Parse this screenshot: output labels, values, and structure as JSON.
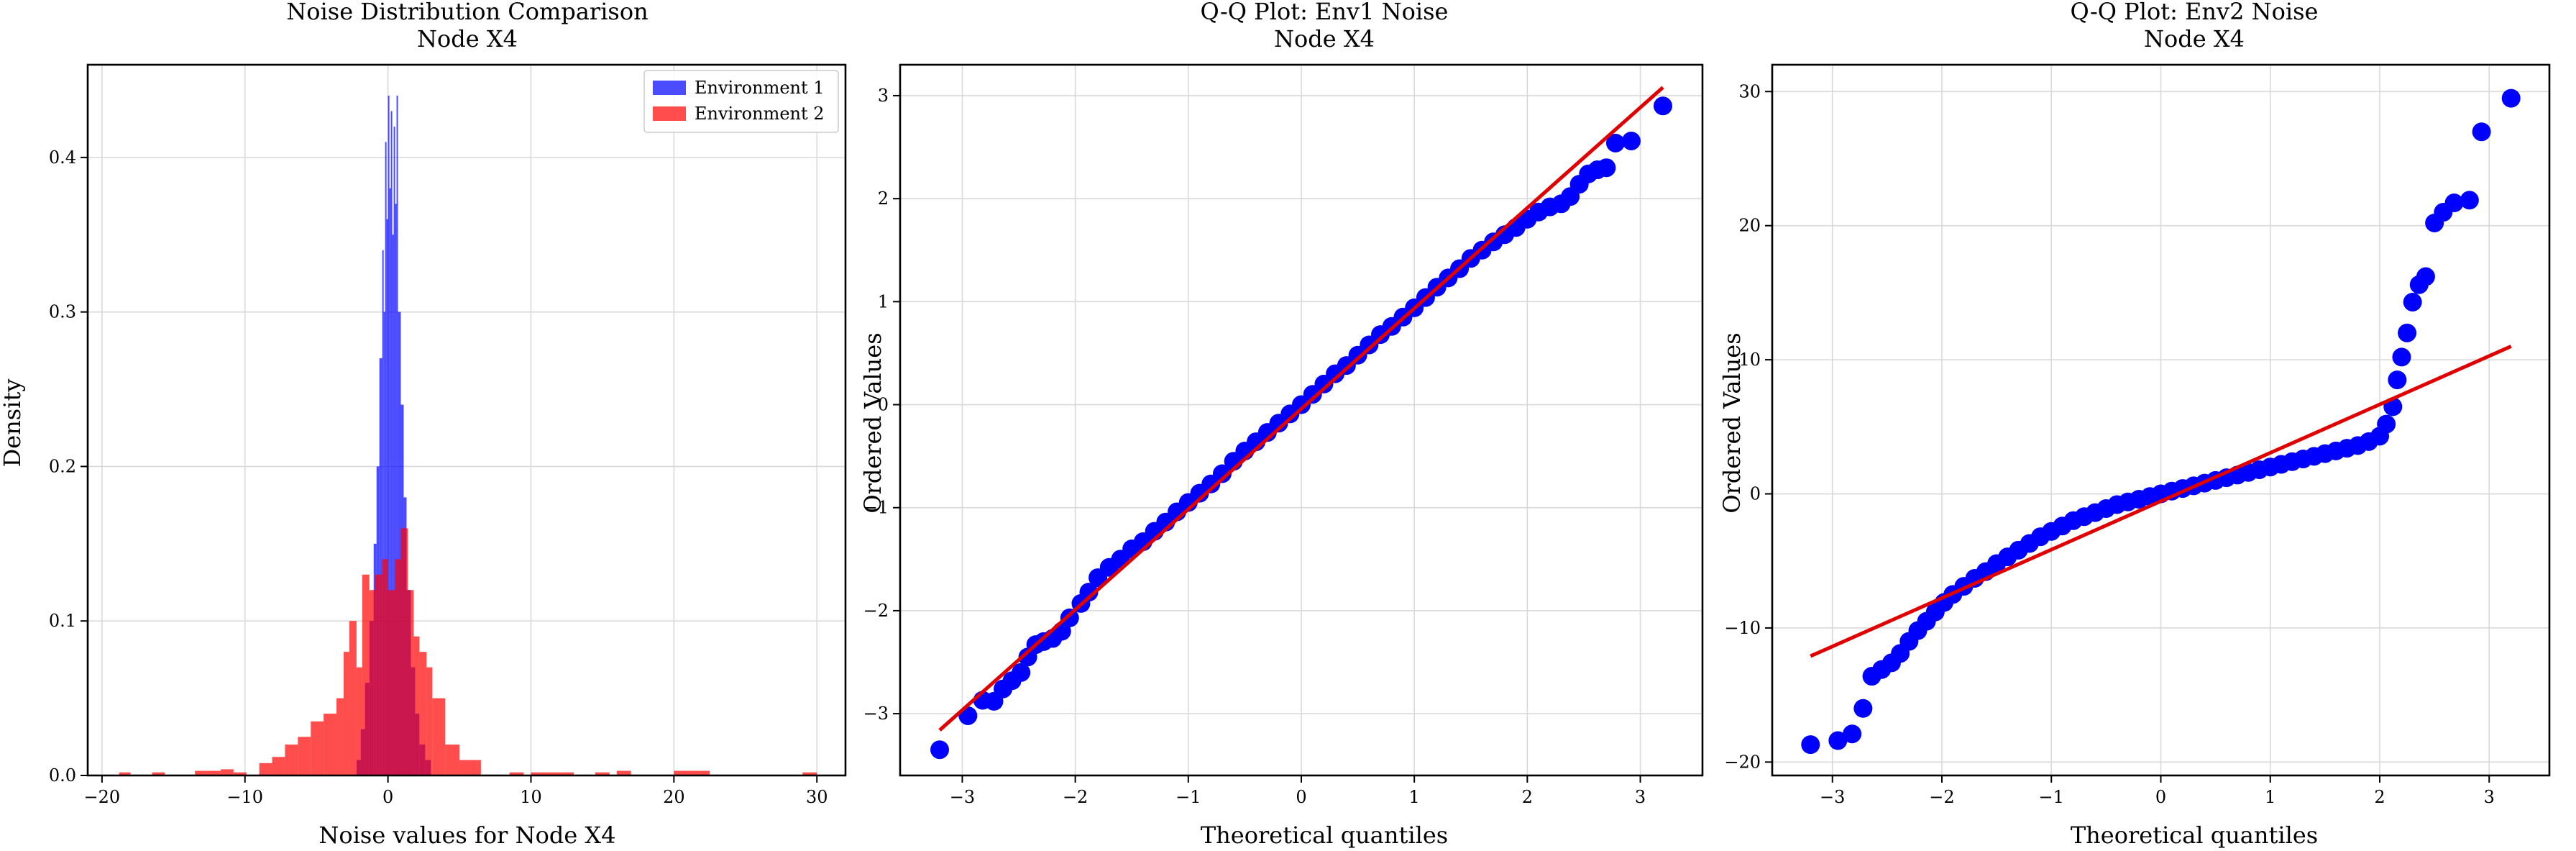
{
  "chart_data": [
    {
      "type": "histogram",
      "title": "Noise Distribution Comparison",
      "subtitle": "Node X4",
      "xlabel": "Noise values for Node X4",
      "ylabel": "Density",
      "xlim": [
        -21,
        32
      ],
      "ylim": [
        0,
        0.46
      ],
      "xticks": [
        -20,
        -10,
        0,
        10,
        20,
        30
      ],
      "yticks": [
        0.0,
        0.1,
        0.2,
        0.3,
        0.4
      ],
      "xtick_labels": [
        "−20",
        "−10",
        "0",
        "10",
        "20",
        "30"
      ],
      "ytick_labels": [
        "0.0",
        "0.1",
        "0.2",
        "0.3",
        "0.4"
      ],
      "grid": true,
      "legend": "top-right",
      "series": [
        {
          "name": "Environment 1",
          "color": "#0000ff",
          "opacity": 0.7,
          "bins": [
            [
              -2.2,
              -1.9,
              0.01
            ],
            [
              -1.9,
              -1.6,
              0.03
            ],
            [
              -1.6,
              -1.3,
              0.06
            ],
            [
              -1.3,
              -1.0,
              0.1
            ],
            [
              -1.0,
              -0.8,
              0.15
            ],
            [
              -0.8,
              -0.6,
              0.2
            ],
            [
              -0.6,
              -0.4,
              0.27
            ],
            [
              -0.4,
              -0.3,
              0.34
            ],
            [
              -0.3,
              -0.2,
              0.3
            ],
            [
              -0.2,
              -0.1,
              0.41
            ],
            [
              -0.1,
              0.0,
              0.36
            ],
            [
              0.0,
              0.1,
              0.44
            ],
            [
              0.1,
              0.2,
              0.38
            ],
            [
              0.2,
              0.3,
              0.43
            ],
            [
              0.3,
              0.4,
              0.35
            ],
            [
              0.4,
              0.5,
              0.42
            ],
            [
              0.5,
              0.6,
              0.37
            ],
            [
              0.6,
              0.7,
              0.44
            ],
            [
              0.7,
              0.9,
              0.3
            ],
            [
              0.9,
              1.1,
              0.24
            ],
            [
              1.1,
              1.3,
              0.18
            ],
            [
              1.3,
              1.6,
              0.12
            ],
            [
              1.6,
              1.9,
              0.07
            ],
            [
              1.9,
              2.2,
              0.04
            ],
            [
              2.2,
              2.6,
              0.02
            ],
            [
              2.6,
              3.0,
              0.01
            ]
          ]
        },
        {
          "name": "Environment 2",
          "color": "#ff0000",
          "opacity": 0.7,
          "bins": [
            [
              -18.8,
              -18.0,
              0.002
            ],
            [
              -16.5,
              -15.6,
              0.002
            ],
            [
              -13.5,
              -12.6,
              0.003
            ],
            [
              -12.6,
              -11.7,
              0.003
            ],
            [
              -11.7,
              -10.8,
              0.004
            ],
            [
              -10.8,
              -9.9,
              0.002
            ],
            [
              -9.0,
              -8.1,
              0.008
            ],
            [
              -8.1,
              -7.2,
              0.012
            ],
            [
              -7.2,
              -6.3,
              0.02
            ],
            [
              -6.3,
              -5.4,
              0.025
            ],
            [
              -5.4,
              -4.5,
              0.035
            ],
            [
              -4.5,
              -3.6,
              0.04
            ],
            [
              -3.6,
              -3.1,
              0.05
            ],
            [
              -3.1,
              -2.7,
              0.08
            ],
            [
              -2.7,
              -2.2,
              0.1
            ],
            [
              -2.2,
              -1.8,
              0.07
            ],
            [
              -1.8,
              -1.3,
              0.13
            ],
            [
              -1.3,
              -0.9,
              0.12
            ],
            [
              -0.9,
              -0.4,
              0.13
            ],
            [
              -0.4,
              0.0,
              0.14
            ],
            [
              0.0,
              0.5,
              0.12
            ],
            [
              0.5,
              0.9,
              0.14
            ],
            [
              0.9,
              1.4,
              0.16
            ],
            [
              1.4,
              1.8,
              0.12
            ],
            [
              1.8,
              2.2,
              0.09
            ],
            [
              2.2,
              2.7,
              0.08
            ],
            [
              2.7,
              3.1,
              0.07
            ],
            [
              3.1,
              4.0,
              0.05
            ],
            [
              4.0,
              5.0,
              0.02
            ],
            [
              5.0,
              6.5,
              0.01
            ],
            [
              8.5,
              9.5,
              0.002
            ],
            [
              10.0,
              13.0,
              0.002
            ],
            [
              14.5,
              15.5,
              0.002
            ],
            [
              16.0,
              17.0,
              0.003
            ],
            [
              20.0,
              22.5,
              0.003
            ],
            [
              29.0,
              30.0,
              0.002
            ]
          ]
        }
      ]
    },
    {
      "type": "scatter",
      "title": "Q-Q Plot: Env1 Noise",
      "subtitle": "Node X4",
      "xlabel": "Theoretical quantiles",
      "ylabel": "Ordered Values",
      "xlim": [
        -3.55,
        3.55
      ],
      "ylim": [
        -3.6,
        3.3
      ],
      "xticks": [
        -3,
        -2,
        -1,
        0,
        1,
        2,
        3
      ],
      "yticks": [
        -3,
        -2,
        -1,
        0,
        1,
        2,
        3
      ],
      "xtick_labels": [
        "−3",
        "−2",
        "−1",
        "0",
        "1",
        "2",
        "3"
      ],
      "ytick_labels": [
        "−3",
        "−2",
        "−1",
        "0",
        "1",
        "2",
        "3"
      ],
      "grid": true,
      "points_color": "#0000ff",
      "line_color": "#e00000",
      "points": [
        [
          -3.2,
          -3.35
        ],
        [
          -2.95,
          -3.02
        ],
        [
          -2.82,
          -2.87
        ],
        [
          -2.72,
          -2.88
        ],
        [
          -2.64,
          -2.76
        ],
        [
          -2.56,
          -2.68
        ],
        [
          -2.48,
          -2.6
        ],
        [
          -2.42,
          -2.45
        ],
        [
          -2.35,
          -2.33
        ],
        [
          -2.28,
          -2.3
        ],
        [
          -2.2,
          -2.27
        ],
        [
          -2.12,
          -2.2
        ],
        [
          -2.05,
          -2.07
        ],
        [
          -1.95,
          -1.93
        ],
        [
          -1.88,
          -1.82
        ],
        [
          -1.8,
          -1.68
        ],
        [
          -1.7,
          -1.58
        ],
        [
          -1.6,
          -1.5
        ],
        [
          -1.5,
          -1.4
        ],
        [
          -1.4,
          -1.33
        ],
        [
          -1.3,
          -1.23
        ],
        [
          -1.2,
          -1.14
        ],
        [
          -1.1,
          -1.04
        ],
        [
          -1.0,
          -0.95
        ],
        [
          -0.9,
          -0.86
        ],
        [
          -0.8,
          -0.77
        ],
        [
          -0.7,
          -0.67
        ],
        [
          -0.6,
          -0.55
        ],
        [
          -0.5,
          -0.45
        ],
        [
          -0.4,
          -0.36
        ],
        [
          -0.3,
          -0.27
        ],
        [
          -0.2,
          -0.18
        ],
        [
          -0.1,
          -0.09
        ],
        [
          0.0,
          0.0
        ],
        [
          0.1,
          0.1
        ],
        [
          0.2,
          0.2
        ],
        [
          0.3,
          0.3
        ],
        [
          0.4,
          0.38
        ],
        [
          0.5,
          0.48
        ],
        [
          0.6,
          0.58
        ],
        [
          0.7,
          0.68
        ],
        [
          0.8,
          0.76
        ],
        [
          0.9,
          0.85
        ],
        [
          1.0,
          0.94
        ],
        [
          1.1,
          1.04
        ],
        [
          1.2,
          1.14
        ],
        [
          1.3,
          1.23
        ],
        [
          1.4,
          1.32
        ],
        [
          1.5,
          1.42
        ],
        [
          1.6,
          1.5
        ],
        [
          1.7,
          1.58
        ],
        [
          1.8,
          1.65
        ],
        [
          1.9,
          1.72
        ],
        [
          2.0,
          1.8
        ],
        [
          2.1,
          1.87
        ],
        [
          2.2,
          1.92
        ],
        [
          2.3,
          1.95
        ],
        [
          2.38,
          2.02
        ],
        [
          2.46,
          2.14
        ],
        [
          2.54,
          2.24
        ],
        [
          2.62,
          2.28
        ],
        [
          2.7,
          2.3
        ],
        [
          2.78,
          2.54
        ],
        [
          2.92,
          2.56
        ],
        [
          3.2,
          2.9
        ]
      ],
      "fit_line": [
        [
          -3.2,
          -3.16
        ],
        [
          3.2,
          3.08
        ]
      ]
    },
    {
      "type": "scatter",
      "title": "Q-Q Plot: Env2 Noise",
      "subtitle": "Node X4",
      "xlabel": "Theoretical quantiles",
      "ylabel": "Ordered Values",
      "xlim": [
        -3.55,
        3.55
      ],
      "ylim": [
        -21,
        32
      ],
      "xticks": [
        -3,
        -2,
        -1,
        0,
        1,
        2,
        3
      ],
      "yticks": [
        -20,
        -10,
        0,
        10,
        20,
        30
      ],
      "xtick_labels": [
        "−3",
        "−2",
        "−1",
        "0",
        "1",
        "2",
        "3"
      ],
      "ytick_labels": [
        "−20",
        "−10",
        "0",
        "10",
        "20",
        "30"
      ],
      "grid": true,
      "points_color": "#0000ff",
      "line_color": "#e00000",
      "points": [
        [
          -3.2,
          -18.7
        ],
        [
          -2.95,
          -18.4
        ],
        [
          -2.82,
          -17.9
        ],
        [
          -2.72,
          -16.0
        ],
        [
          -2.64,
          -13.6
        ],
        [
          -2.55,
          -13.1
        ],
        [
          -2.46,
          -12.6
        ],
        [
          -2.38,
          -11.9
        ],
        [
          -2.3,
          -11.0
        ],
        [
          -2.22,
          -10.2
        ],
        [
          -2.14,
          -9.5
        ],
        [
          -2.06,
          -8.8
        ],
        [
          -1.98,
          -8.1
        ],
        [
          -1.9,
          -7.5
        ],
        [
          -1.8,
          -6.9
        ],
        [
          -1.7,
          -6.3
        ],
        [
          -1.6,
          -5.8
        ],
        [
          -1.5,
          -5.2
        ],
        [
          -1.4,
          -4.7
        ],
        [
          -1.3,
          -4.2
        ],
        [
          -1.2,
          -3.7
        ],
        [
          -1.1,
          -3.2
        ],
        [
          -1.0,
          -2.8
        ],
        [
          -0.9,
          -2.4
        ],
        [
          -0.8,
          -2.0
        ],
        [
          -0.7,
          -1.7
        ],
        [
          -0.6,
          -1.4
        ],
        [
          -0.5,
          -1.1
        ],
        [
          -0.4,
          -0.8
        ],
        [
          -0.3,
          -0.6
        ],
        [
          -0.2,
          -0.4
        ],
        [
          -0.1,
          -0.2
        ],
        [
          0.0,
          0.0
        ],
        [
          0.1,
          0.2
        ],
        [
          0.2,
          0.4
        ],
        [
          0.3,
          0.6
        ],
        [
          0.4,
          0.8
        ],
        [
          0.5,
          1.0
        ],
        [
          0.6,
          1.2
        ],
        [
          0.7,
          1.4
        ],
        [
          0.8,
          1.6
        ],
        [
          0.9,
          1.8
        ],
        [
          1.0,
          2.0
        ],
        [
          1.1,
          2.2
        ],
        [
          1.2,
          2.4
        ],
        [
          1.3,
          2.6
        ],
        [
          1.4,
          2.8
        ],
        [
          1.5,
          3.0
        ],
        [
          1.6,
          3.2
        ],
        [
          1.7,
          3.4
        ],
        [
          1.8,
          3.6
        ],
        [
          1.9,
          3.9
        ],
        [
          2.0,
          4.3
        ],
        [
          2.06,
          5.2
        ],
        [
          2.12,
          6.5
        ],
        [
          2.16,
          8.5
        ],
        [
          2.2,
          10.2
        ],
        [
          2.25,
          12.0
        ],
        [
          2.3,
          14.3
        ],
        [
          2.36,
          15.6
        ],
        [
          2.42,
          16.2
        ],
        [
          2.5,
          20.2
        ],
        [
          2.58,
          21.0
        ],
        [
          2.68,
          21.7
        ],
        [
          2.82,
          21.9
        ],
        [
          2.93,
          27.0
        ],
        [
          3.2,
          29.5
        ]
      ],
      "fit_line": [
        [
          -3.2,
          -12.1
        ],
        [
          3.2,
          11.0
        ]
      ]
    }
  ]
}
